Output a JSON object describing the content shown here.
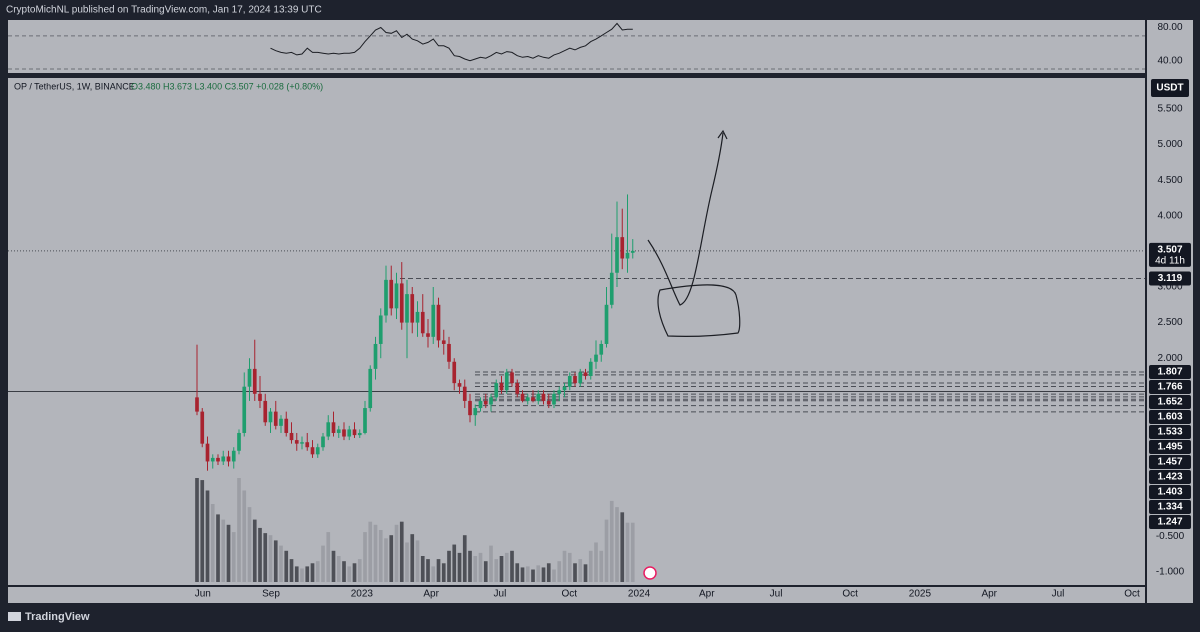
{
  "header": {
    "publisher": "CryptoMichNL published on TradingView.com, Jan 17, 2024 13:39 UTC"
  },
  "chart_data": {
    "type": "candlestick",
    "symbol": "OP / TetherUS, 1W, BINANCE",
    "ohlc_legend": "O3.480 H3.673 L3.400 C3.507 +0.028 (+0.80%)",
    "currency": "USDT",
    "up_color": "#1f9e6e",
    "down_color": "#a8232f",
    "candles": [
      [
        1.45,
        2.19,
        1.2,
        1.25
      ],
      [
        1.25,
        1.3,
        0.75,
        0.8
      ],
      [
        0.8,
        0.9,
        0.42,
        0.55
      ],
      [
        0.55,
        0.65,
        0.45,
        0.6
      ],
      [
        0.6,
        0.65,
        0.5,
        0.55
      ],
      [
        0.55,
        0.7,
        0.5,
        0.62
      ],
      [
        0.62,
        0.7,
        0.48,
        0.55
      ],
      [
        0.55,
        0.75,
        0.45,
        0.7
      ],
      [
        0.7,
        1.0,
        0.65,
        0.95
      ],
      [
        0.95,
        1.8,
        0.9,
        1.6
      ],
      [
        1.6,
        2.0,
        1.4,
        1.85
      ],
      [
        1.85,
        2.26,
        1.4,
        1.5
      ],
      [
        1.5,
        1.75,
        1.3,
        1.4
      ],
      [
        1.4,
        1.5,
        1.05,
        1.1
      ],
      [
        1.1,
        1.3,
        0.95,
        1.25
      ],
      [
        1.25,
        1.4,
        1.0,
        1.05
      ],
      [
        1.05,
        1.2,
        0.95,
        1.15
      ],
      [
        1.15,
        1.25,
        0.9,
        0.95
      ],
      [
        0.95,
        1.1,
        0.8,
        0.85
      ],
      [
        0.85,
        0.95,
        0.7,
        0.8
      ],
      [
        0.8,
        0.9,
        0.72,
        0.82
      ],
      [
        0.82,
        0.95,
        0.7,
        0.75
      ],
      [
        0.75,
        0.85,
        0.6,
        0.65
      ],
      [
        0.65,
        0.8,
        0.6,
        0.75
      ],
      [
        0.75,
        0.95,
        0.7,
        0.9
      ],
      [
        0.9,
        1.2,
        0.85,
        1.1
      ],
      [
        1.1,
        1.25,
        0.9,
        0.95
      ],
      [
        0.95,
        1.05,
        0.88,
        1.0
      ],
      [
        1.0,
        1.1,
        0.85,
        0.9
      ],
      [
        0.9,
        1.05,
        0.85,
        1.0
      ],
      [
        1.0,
        1.1,
        0.88,
        0.92
      ],
      [
        0.92,
        1.0,
        0.88,
        0.95
      ],
      [
        0.95,
        1.4,
        0.93,
        1.3
      ],
      [
        1.3,
        1.9,
        1.25,
        1.85
      ],
      [
        1.85,
        2.3,
        1.7,
        2.2
      ],
      [
        2.2,
        2.7,
        2.0,
        2.6
      ],
      [
        2.6,
        3.3,
        2.5,
        3.1
      ],
      [
        3.1,
        3.3,
        2.6,
        2.7
      ],
      [
        2.7,
        3.2,
        2.55,
        3.05
      ],
      [
        3.05,
        3.35,
        2.4,
        2.5
      ],
      [
        2.5,
        3.1,
        2.0,
        2.9
      ],
      [
        2.9,
        3.0,
        2.35,
        2.5
      ],
      [
        2.5,
        2.8,
        2.3,
        2.65
      ],
      [
        2.65,
        2.9,
        2.3,
        2.35
      ],
      [
        2.35,
        2.55,
        2.15,
        2.3
      ],
      [
        2.3,
        3.0,
        2.2,
        2.75
      ],
      [
        2.75,
        2.85,
        2.15,
        2.25
      ],
      [
        2.25,
        2.4,
        2.05,
        2.2
      ],
      [
        2.2,
        2.3,
        1.85,
        1.95
      ],
      [
        1.95,
        2.0,
        1.55,
        1.65
      ],
      [
        1.65,
        1.7,
        1.5,
        1.6
      ],
      [
        1.6,
        1.7,
        1.3,
        1.4
      ],
      [
        1.4,
        1.5,
        1.1,
        1.2
      ],
      [
        1.2,
        1.35,
        1.05,
        1.3
      ],
      [
        1.3,
        1.45,
        1.25,
        1.4
      ],
      [
        1.4,
        1.5,
        1.3,
        1.35
      ],
      [
        1.35,
        1.5,
        1.25,
        1.45
      ],
      [
        1.45,
        1.7,
        1.4,
        1.65
      ],
      [
        1.65,
        1.75,
        1.5,
        1.55
      ],
      [
        1.55,
        1.85,
        1.5,
        1.8
      ],
      [
        1.8,
        1.85,
        1.6,
        1.65
      ],
      [
        1.65,
        1.7,
        1.45,
        1.5
      ],
      [
        1.5,
        1.55,
        1.38,
        1.4
      ],
      [
        1.4,
        1.5,
        1.35,
        1.45
      ],
      [
        1.45,
        1.55,
        1.38,
        1.4
      ],
      [
        1.4,
        1.55,
        1.35,
        1.5
      ],
      [
        1.5,
        1.55,
        1.35,
        1.4
      ],
      [
        1.4,
        1.5,
        1.3,
        1.35
      ],
      [
        1.35,
        1.55,
        1.3,
        1.5
      ],
      [
        1.5,
        1.6,
        1.4,
        1.55
      ],
      [
        1.55,
        1.65,
        1.45,
        1.6
      ],
      [
        1.6,
        1.8,
        1.55,
        1.75
      ],
      [
        1.75,
        1.8,
        1.6,
        1.65
      ],
      [
        1.65,
        1.85,
        1.6,
        1.8
      ],
      [
        1.8,
        1.85,
        1.7,
        1.75
      ],
      [
        1.75,
        2.0,
        1.7,
        1.95
      ],
      [
        1.95,
        2.25,
        1.85,
        2.05
      ],
      [
        2.05,
        2.25,
        1.95,
        2.2
      ],
      [
        2.2,
        3.0,
        2.15,
        2.75
      ],
      [
        2.75,
        3.75,
        2.7,
        3.2
      ],
      [
        3.2,
        4.2,
        3.0,
        3.7
      ],
      [
        3.7,
        4.1,
        3.25,
        3.4
      ],
      [
        3.4,
        4.3,
        3.2,
        3.48
      ],
      [
        3.48,
        3.673,
        3.4,
        3.507
      ]
    ],
    "volume_up_color": "#9c9ea5",
    "volume_down_color": "#4e5057",
    "volumes": [
      100,
      98,
      88,
      75,
      65,
      60,
      55,
      48,
      100,
      88,
      72,
      60,
      52,
      47,
      45,
      40,
      35,
      30,
      22,
      15,
      13,
      15,
      18,
      20,
      35,
      48,
      30,
      25,
      20,
      15,
      18,
      22,
      48,
      58,
      55,
      50,
      42,
      45,
      55,
      58,
      38,
      46,
      40,
      25,
      22,
      15,
      22,
      18,
      30,
      36,
      28,
      45,
      30,
      25,
      28,
      20,
      35,
      22,
      25,
      28,
      30,
      18,
      14,
      15,
      12,
      16,
      14,
      18,
      12,
      20,
      30,
      28,
      18,
      22,
      17,
      30,
      38,
      30,
      60,
      78,
      72,
      67,
      57,
      57
    ],
    "xlim": [
      -36,
      180.57
    ],
    "xticks": [
      {
        "value": 1.1,
        "label": "Jun"
      },
      {
        "value": 14.1,
        "label": "Sep"
      },
      {
        "value": 31.4,
        "label": "2023"
      },
      {
        "value": 44.6,
        "label": "Apr"
      },
      {
        "value": 57.7,
        "label": "Jul"
      },
      {
        "value": 70.9,
        "label": "Oct"
      },
      {
        "value": 84.2,
        "label": "2024"
      },
      {
        "value": 97.1,
        "label": "Apr"
      },
      {
        "value": 110.3,
        "label": "Jul"
      },
      {
        "value": 124.4,
        "label": "Oct"
      },
      {
        "value": 137.7,
        "label": "2025"
      },
      {
        "value": 150.9,
        "label": "Apr"
      },
      {
        "value": 164.0,
        "label": "Jul"
      },
      {
        "value": 178.1,
        "label": "Oct"
      }
    ],
    "ylim": [
      -1.185,
      5.935
    ],
    "yticks": [
      {
        "value": 5.5,
        "label": "5.500"
      },
      {
        "value": 5,
        "label": "5.000"
      },
      {
        "value": 4.5,
        "label": "4.500"
      },
      {
        "value": 4,
        "label": "4.000"
      },
      {
        "value": 3,
        "label": "3.000"
      },
      {
        "value": 2.5,
        "label": "2.500"
      },
      {
        "value": 2,
        "label": "2.000"
      },
      {
        "value": -0.5,
        "label": "-0.500"
      },
      {
        "value": -1,
        "label": "-1.000"
      }
    ],
    "last_price": 3.507,
    "countdown": "4d 11h",
    "levels": [
      {
        "value": 3.119,
        "style": "dashed"
      },
      {
        "value": 1.807,
        "style": "dashed"
      },
      {
        "value": 1.766,
        "style": "dashed"
      },
      {
        "value": 1.652,
        "style": "dashed"
      },
      {
        "value": 1.603,
        "style": "dashed"
      },
      {
        "value": 1.533,
        "style": "solid"
      },
      {
        "value": 1.495,
        "style": "dashed"
      },
      {
        "value": 1.457,
        "style": "dashed"
      },
      {
        "value": 1.423,
        "style": "dashed"
      },
      {
        "value": 1.403,
        "style": "dashed"
      },
      {
        "value": 1.334,
        "style": "dashed"
      },
      {
        "value": 1.247,
        "style": "dashed"
      }
    ],
    "rsi": {
      "color": "#1c1e24",
      "ylim": [
        25.1,
        89.1
      ],
      "yticks": [
        {
          "value": 80,
          "label": "80.00"
        },
        {
          "value": 40,
          "label": "40.00"
        }
      ],
      "bands": [
        70,
        30
      ],
      "values": [
        null,
        null,
        null,
        null,
        null,
        null,
        null,
        null,
        null,
        null,
        null,
        null,
        null,
        null,
        55,
        52,
        50,
        49,
        50,
        47,
        48,
        55,
        50,
        50,
        49,
        48,
        49,
        48,
        49,
        49,
        50,
        55,
        63,
        70,
        77,
        80,
        74,
        73,
        76,
        68,
        72,
        66,
        64,
        60,
        62,
        66,
        58,
        58,
        55,
        46,
        45,
        42,
        40,
        42,
        44,
        43,
        46,
        50,
        48,
        51,
        50,
        46,
        44,
        45,
        43,
        46,
        44,
        43,
        47,
        49,
        52,
        55,
        53,
        56,
        58,
        63,
        66,
        70,
        74,
        78,
        85,
        77,
        78,
        78
      ]
    }
  },
  "footer": {
    "brand": "TradingView"
  }
}
